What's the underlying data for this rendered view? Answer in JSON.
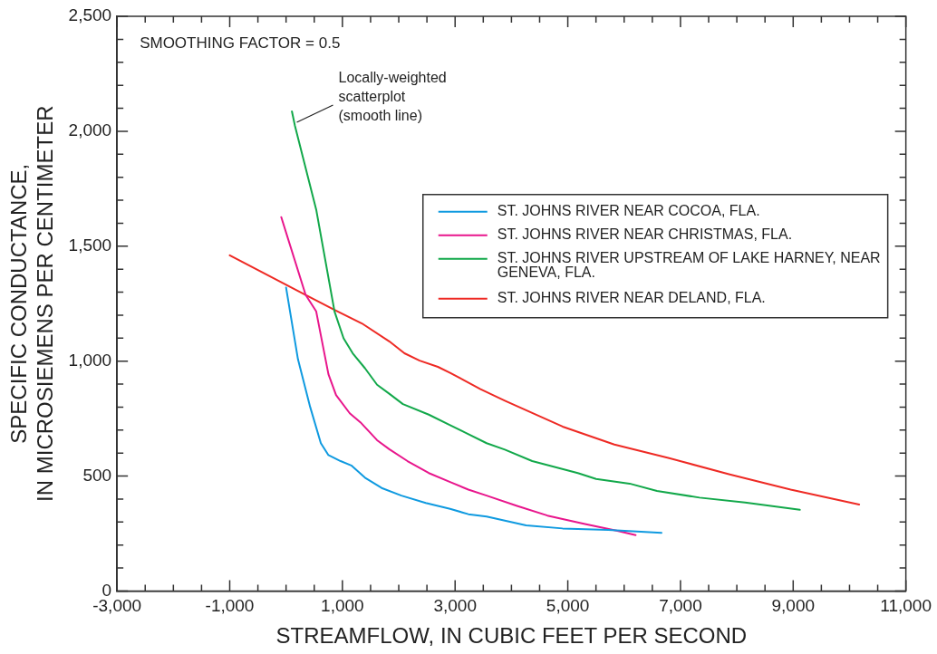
{
  "chart_data": {
    "type": "line",
    "xlabel": "STREAMFLOW, IN CUBIC FEET PER SECOND",
    "ylabel": "SPECIFIC CONDUCTANCE,\nIN MICROSIEMENS PER CENTIMETER",
    "xlim": [
      -3000,
      11000
    ],
    "ylim": [
      0,
      2500
    ],
    "xticks": [
      {
        "value": -3000,
        "label": "-3,000"
      },
      {
        "value": -2500,
        "label": null
      },
      {
        "value": -2000,
        "label": null
      },
      {
        "value": -1500,
        "label": null
      },
      {
        "value": -1000,
        "label": "-1,000"
      },
      {
        "value": -500,
        "label": null
      },
      {
        "value": 0,
        "label": null
      },
      {
        "value": 500,
        "label": null
      },
      {
        "value": 1000,
        "label": "1,000"
      },
      {
        "value": 1500,
        "label": null
      },
      {
        "value": 2000,
        "label": null
      },
      {
        "value": 2500,
        "label": null
      },
      {
        "value": 3000,
        "label": "3,000"
      },
      {
        "value": 3500,
        "label": null
      },
      {
        "value": 4000,
        "label": null
      },
      {
        "value": 4500,
        "label": null
      },
      {
        "value": 5000,
        "label": "5,000"
      },
      {
        "value": 5500,
        "label": null
      },
      {
        "value": 6000,
        "label": null
      },
      {
        "value": 6500,
        "label": null
      },
      {
        "value": 7000,
        "label": "7,000"
      },
      {
        "value": 7500,
        "label": null
      },
      {
        "value": 8000,
        "label": null
      },
      {
        "value": 8500,
        "label": null
      },
      {
        "value": 9000,
        "label": "9,000"
      },
      {
        "value": 9500,
        "label": null
      },
      {
        "value": 10000,
        "label": null
      },
      {
        "value": 10500,
        "label": null
      },
      {
        "value": 11000,
        "label": "11,000"
      }
    ],
    "yticks": [
      0,
      {
        "value": 100,
        "label": null
      },
      {
        "value": 200,
        "label": null
      },
      {
        "value": 300,
        "label": null
      },
      {
        "value": 400,
        "label": null
      },
      500,
      {
        "value": 600,
        "label": null
      },
      {
        "value": 700,
        "label": null
      },
      {
        "value": 800,
        "label": null
      },
      {
        "value": 900,
        "label": null
      },
      {
        "value": 1000,
        "label": "1,000"
      },
      {
        "value": 1100,
        "label": null
      },
      {
        "value": 1200,
        "label": null
      },
      {
        "value": 1300,
        "label": null
      },
      {
        "value": 1400,
        "label": null
      },
      {
        "value": 1500,
        "label": "1,500"
      },
      {
        "value": 1600,
        "label": null
      },
      {
        "value": 1700,
        "label": null
      },
      {
        "value": 1800,
        "label": null
      },
      {
        "value": 1900,
        "label": null
      },
      {
        "value": 2000,
        "label": "2,000"
      },
      {
        "value": 2100,
        "label": null
      },
      {
        "value": 2200,
        "label": null
      },
      {
        "value": 2300,
        "label": null
      },
      {
        "value": 2400,
        "label": null
      },
      {
        "value": 2500,
        "label": "2,500"
      }
    ],
    "grid": false,
    "legend": "right",
    "marker": "none",
    "line_style": "solid",
    "annotations": [
      "SMOOTHING FACTOR = 0.5",
      {
        "text": "Locally-weighted\nscatterplot\n(smooth line)",
        "x": 158,
        "y": 2023
      }
    ],
    "series": [
      {
        "name": "ST. JOHNS RIVER NEAR COCOA, FLA.",
        "color": "#0f9ae0",
        "x": [
          0,
          211,
          428,
          617,
          752,
          968,
          1157,
          1400,
          1696,
          2047,
          2478,
          2911,
          3235,
          3559,
          4260,
          4908,
          5717,
          6663
        ],
        "values": [
          1320,
          1008,
          800,
          643,
          591,
          565,
          546,
          493,
          448,
          415,
          383,
          357,
          334,
          324,
          285,
          272,
          266,
          253
        ]
      },
      {
        "name": "ST. JOHNS RIVER NEAR CHRISTMAS, FLA.",
        "color": "#e8168c",
        "x": [
          -85,
          347,
          535,
          752,
          887,
          1130,
          1319,
          1615,
          1831,
          2155,
          2533,
          2911,
          3235,
          3559,
          4099,
          4638,
          5286,
          5879,
          6203
        ],
        "values": [
          1626,
          1288,
          1216,
          943,
          852,
          773,
          734,
          656,
          617,
          565,
          513,
          474,
          441,
          415,
          370,
          328,
          292,
          262,
          243
        ]
      },
      {
        "name": "ST. JOHNS RIVER UPSTREAM OF LAKE HARNEY, NEAR GENEVA, FLA.",
        "color": "#12a84a",
        "x": [
          104,
          158,
          535,
          860,
          1021,
          1183,
          1400,
          1615,
          1831,
          2074,
          2533,
          2911,
          3181,
          3559,
          3883,
          4368,
          5178,
          5502,
          6097,
          6583,
          7339,
          8146,
          9118
        ],
        "values": [
          2086,
          2023,
          1659,
          1216,
          1099,
          1034,
          969,
          897,
          858,
          813,
          767,
          721,
          689,
          643,
          615,
          565,
          513,
          487,
          467,
          435,
          406,
          385,
          353
        ]
      },
      {
        "name": "ST. JOHNS RIVER NEAR DELAND, FLA.",
        "color": "#ee2a24",
        "x": [
          -1000,
          347,
          860,
          1345,
          1831,
          2101,
          2371,
          2695,
          2911,
          3451,
          3883,
          4908,
          5826,
          6798,
          7874,
          8955,
          10171
        ],
        "values": [
          1460,
          1288,
          1223,
          1164,
          1086,
          1034,
          1002,
          975,
          949,
          878,
          828,
          715,
          637,
          578,
          507,
          441,
          376
        ]
      }
    ]
  }
}
